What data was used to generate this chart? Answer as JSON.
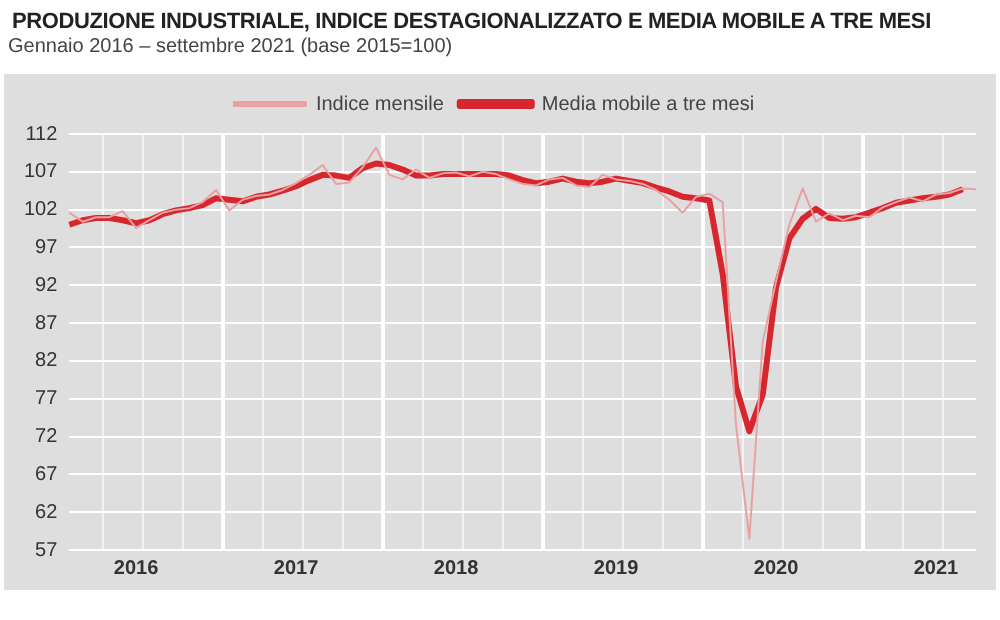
{
  "chart_data": {
    "type": "line",
    "title": "PRODUZIONE INDUSTRIALE, INDICE DESTAGIONALIZZATO E MEDIA MOBILE A TRE MESI",
    "subtitle": "Gennaio 2016 – settembre 2021 (base 2015=100)",
    "categories": [
      null,
      null,
      null,
      null,
      null,
      "2016",
      null,
      null,
      null,
      null,
      null,
      null,
      null,
      null,
      null,
      null,
      null,
      "2017",
      null,
      null,
      null,
      null,
      null,
      null,
      null,
      null,
      null,
      null,
      null,
      "2018",
      null,
      null,
      null,
      null,
      null,
      null,
      null,
      null,
      null,
      null,
      null,
      "2019",
      null,
      null,
      null,
      null,
      null,
      null,
      null,
      null,
      null,
      null,
      null,
      "2020",
      null,
      null,
      null,
      null,
      null,
      null,
      null,
      null,
      null,
      null,
      null,
      "2021",
      null,
      null,
      null
    ],
    "series": [
      {
        "name": "Indice mensile",
        "color": "#e8a0a3",
        "values": [
          101.6,
          100.4,
          101.0,
          101.0,
          101.8,
          99.6,
          100.6,
          101.6,
          102.0,
          102.2,
          103.0,
          104.6,
          101.9,
          103.3,
          103.8,
          104.0,
          104.6,
          105.5,
          106.6,
          107.9,
          105.4,
          105.6,
          107.6,
          110.2,
          106.6,
          106.0,
          107.3,
          106.2,
          106.8,
          106.9,
          106.4,
          107.0,
          106.7,
          106.0,
          105.4,
          105.2,
          106.0,
          106.2,
          105.2,
          105.0,
          106.6,
          106.0,
          105.8,
          105.4,
          104.6,
          103.3,
          101.6,
          103.7,
          104.1,
          103.0,
          73.5,
          58.5,
          84.5,
          92.5,
          100.0,
          104.8,
          100.4,
          101.5,
          100.6,
          101.2,
          101.0,
          102.3,
          103.0,
          103.6,
          103.1,
          104.0,
          104.2,
          104.8,
          104.7
        ]
      },
      {
        "name": "Media mobile a tre mesi",
        "color": "#d7262e",
        "values": [
          100.0,
          100.6,
          100.9,
          100.9,
          100.6,
          100.2,
          100.6,
          101.4,
          101.9,
          102.2,
          102.6,
          103.5,
          103.3,
          103.1,
          103.7,
          104.0,
          104.5,
          105.1,
          105.9,
          106.6,
          106.5,
          106.2,
          107.5,
          108.1,
          107.9,
          107.3,
          106.5,
          106.5,
          106.7,
          106.7,
          106.7,
          106.7,
          106.7,
          106.5,
          105.9,
          105.5,
          105.7,
          106.1,
          105.7,
          105.5,
          105.7,
          106.1,
          105.8,
          105.5,
          104.9,
          104.4,
          103.7,
          103.5,
          103.2,
          93.5,
          78.6,
          72.7,
          77.5,
          91.7,
          98.2,
          100.8,
          102.1,
          100.9,
          100.8,
          101.0,
          101.6,
          102.2,
          102.9,
          103.2,
          103.5,
          103.7,
          104.0,
          104.7,
          null
        ]
      }
    ],
    "ylim": [
      57,
      112
    ],
    "yticks": [
      57,
      62,
      67,
      72,
      77,
      82,
      87,
      92,
      97,
      102,
      107,
      112
    ],
    "grid": true,
    "legend": "top",
    "marker": "none",
    "line_style": "solid"
  }
}
